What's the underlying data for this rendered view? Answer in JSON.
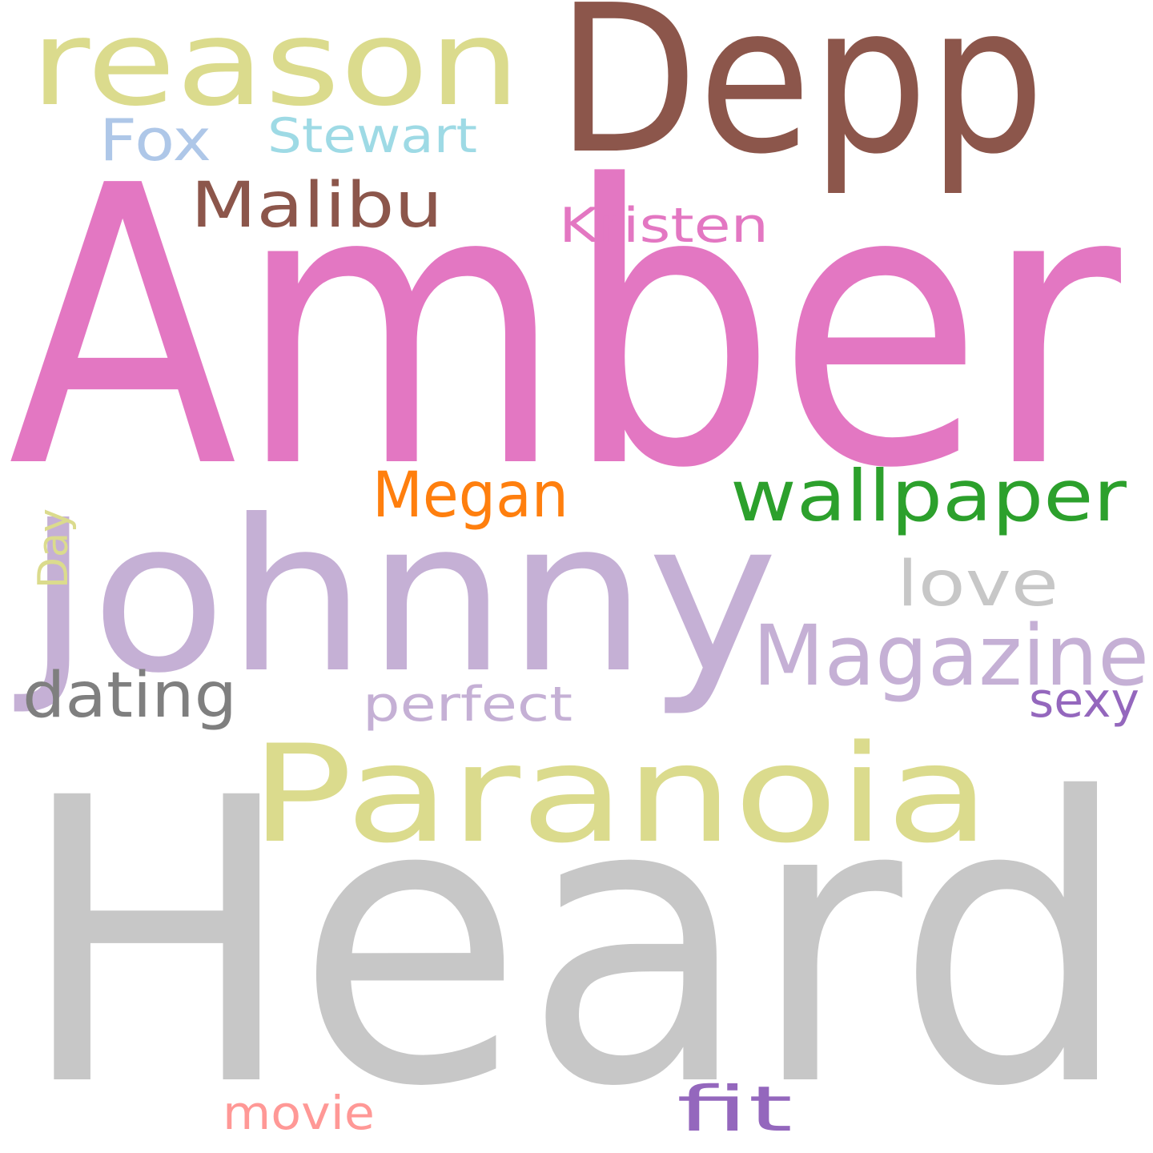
{
  "background": "#ffffff",
  "words": [
    {
      "id": "amber",
      "text": "Amber",
      "color": "#e377c2"
    },
    {
      "id": "heard",
      "text": "Heard",
      "color": "#c7c7c7"
    },
    {
      "id": "johnny",
      "text": "Johnny",
      "color": "#c5b0d5"
    },
    {
      "id": "depp",
      "text": "Depp",
      "color": "#8c564b"
    },
    {
      "id": "paranoia",
      "text": "Paranoia",
      "color": "#dbdb8d"
    },
    {
      "id": "reason",
      "text": "reason",
      "color": "#dbdb8d"
    },
    {
      "id": "magazine",
      "text": "Magazine",
      "color": "#c5b0d5"
    },
    {
      "id": "wallpaper",
      "text": "wallpaper",
      "color": "#2ca02c"
    },
    {
      "id": "malibu",
      "text": "Malibu",
      "color": "#8c564b"
    },
    {
      "id": "megan",
      "text": "Megan",
      "color": "#ff7f0e"
    },
    {
      "id": "love",
      "text": "love",
      "color": "#c7c7c7"
    },
    {
      "id": "dating",
      "text": "dating",
      "color": "#7f7f7f"
    },
    {
      "id": "fit",
      "text": "fit",
      "color": "#9467bd"
    },
    {
      "id": "fox",
      "text": "Fox",
      "color": "#aec7e8"
    },
    {
      "id": "stewart",
      "text": "Stewart",
      "color": "#9edae5"
    },
    {
      "id": "kristen",
      "text": "Kristen",
      "color": "#e377c2"
    },
    {
      "id": "perfect",
      "text": "perfect",
      "color": "#c5b0d5"
    },
    {
      "id": "sexy",
      "text": "sexy",
      "color": "#9467bd"
    },
    {
      "id": "movie",
      "text": "movie",
      "color": "#ff9896"
    },
    {
      "id": "day",
      "text": "Day",
      "color": "#dbdb8d"
    }
  ]
}
